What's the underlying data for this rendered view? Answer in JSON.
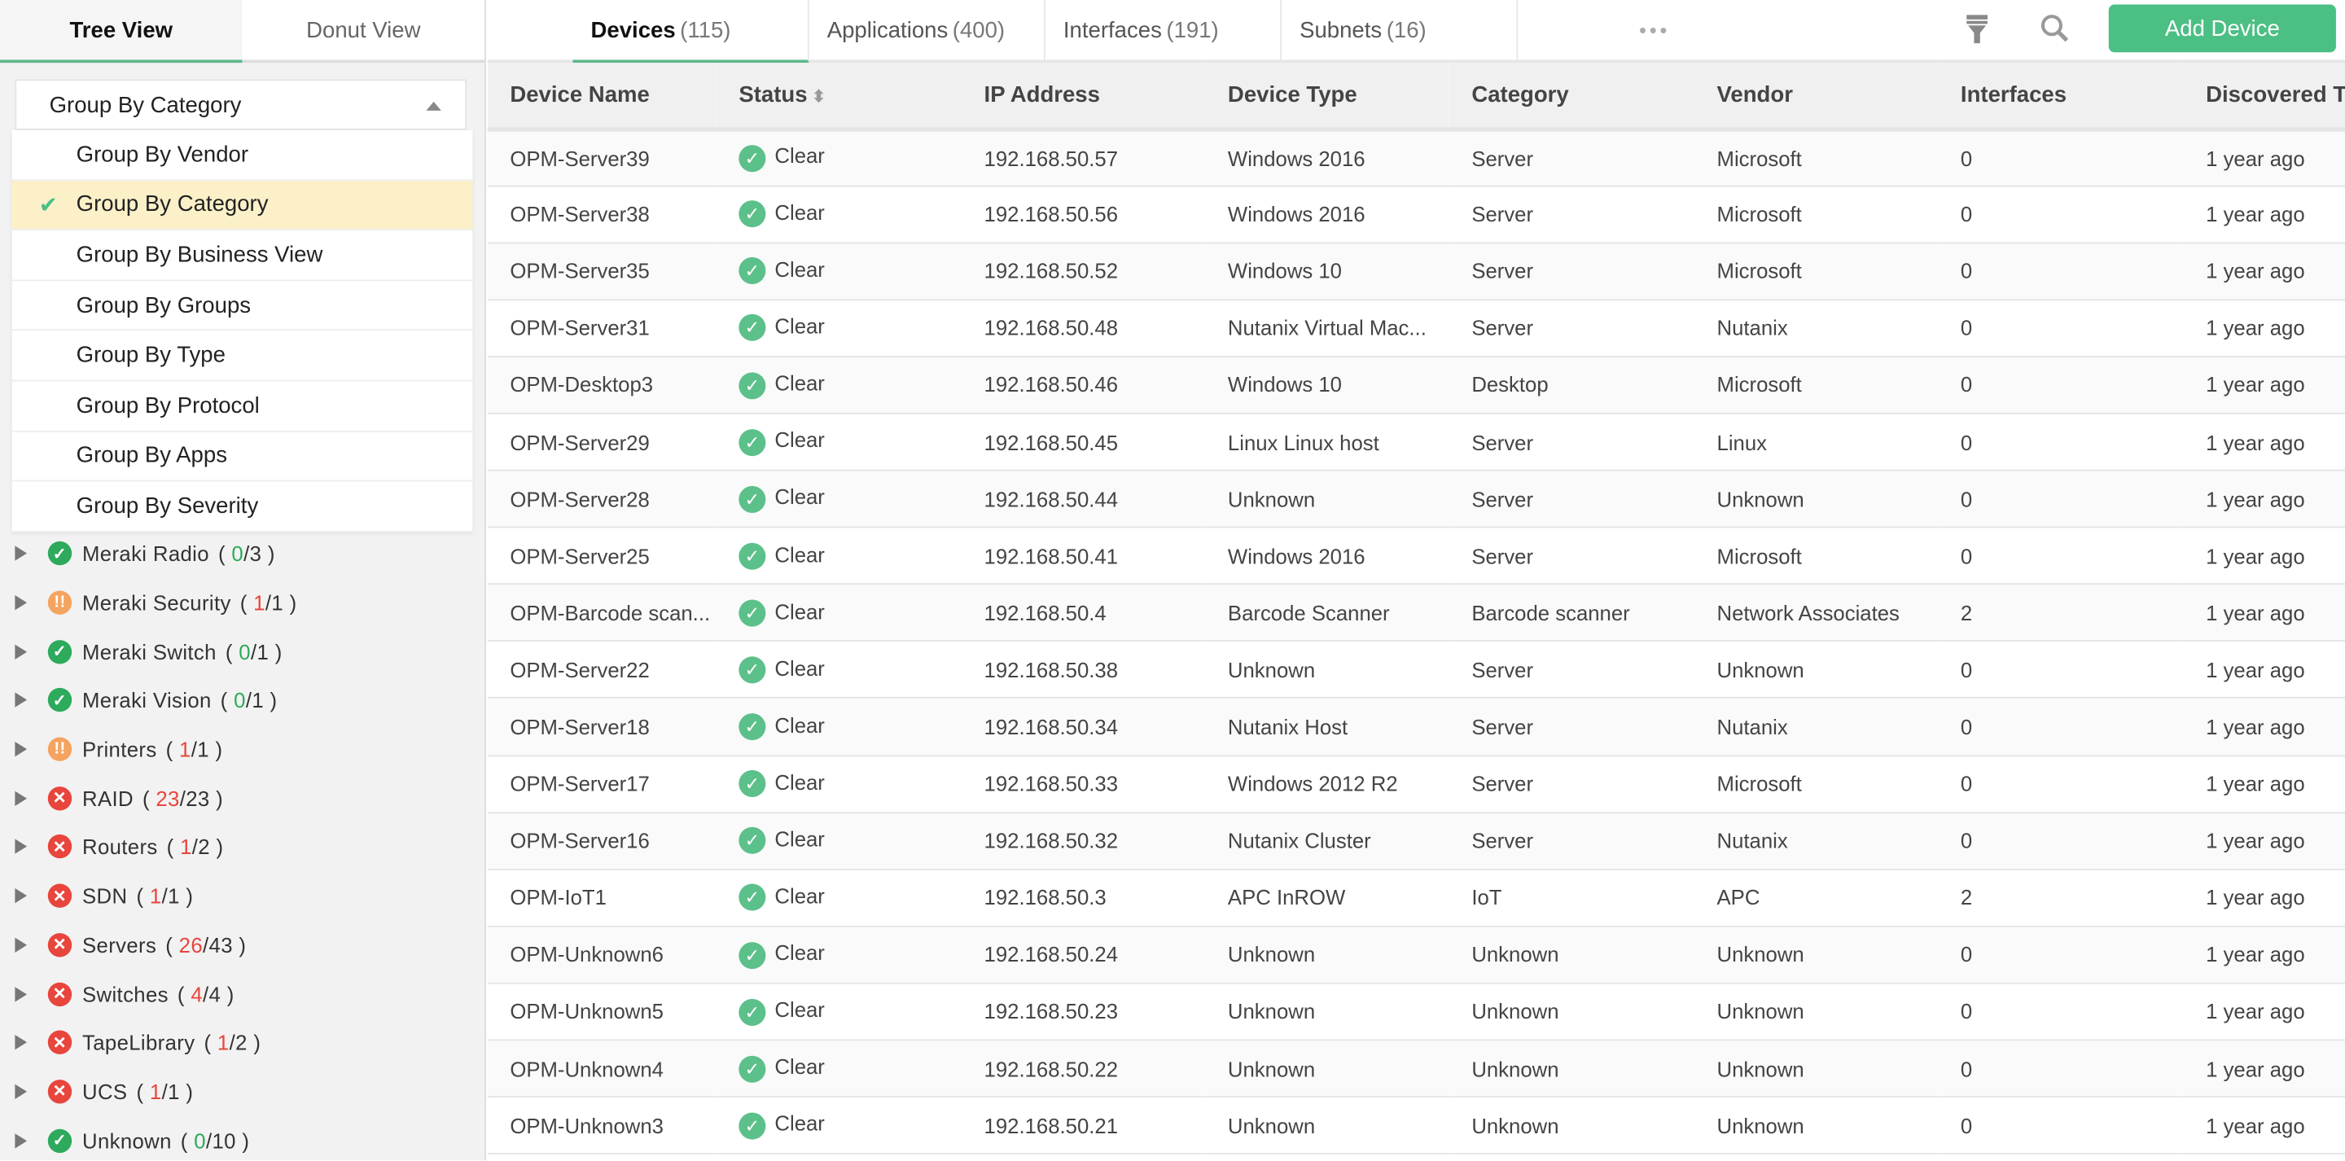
{
  "left_tabs": [
    "Tree View",
    "Donut View"
  ],
  "group_by": {
    "selected": "Group By Category",
    "options": [
      "Group By Vendor",
      "Group By Category",
      "Group By Business View",
      "Group By Groups",
      "Group By Type",
      "Group By Protocol",
      "Group By Apps",
      "Group By Severity"
    ]
  },
  "colors": {
    "clear": "#2eaa5c",
    "attention": "#f4a460",
    "critical": "#e8453c",
    "accent": "#4cbf84"
  },
  "tree": [
    {
      "name": "Meraki Radio",
      "status": "clear",
      "down": "0",
      "total": "3"
    },
    {
      "name": "Meraki Security",
      "status": "attention",
      "down": "1",
      "total": "1"
    },
    {
      "name": "Meraki Switch",
      "status": "clear",
      "down": "0",
      "total": "1"
    },
    {
      "name": "Meraki Vision",
      "status": "clear",
      "down": "0",
      "total": "1"
    },
    {
      "name": "Printers",
      "status": "attention",
      "down": "1",
      "total": "1"
    },
    {
      "name": "RAID",
      "status": "critical",
      "down": "23",
      "total": "23"
    },
    {
      "name": "Routers",
      "status": "critical",
      "down": "1",
      "total": "2"
    },
    {
      "name": "SDN",
      "status": "critical",
      "down": "1",
      "total": "1"
    },
    {
      "name": "Servers",
      "status": "critical",
      "down": "26",
      "total": "43"
    },
    {
      "name": "Switches",
      "status": "critical",
      "down": "4",
      "total": "4"
    },
    {
      "name": "TapeLibrary",
      "status": "critical",
      "down": "1",
      "total": "2"
    },
    {
      "name": "UCS",
      "status": "critical",
      "down": "1",
      "total": "1"
    },
    {
      "name": "Unknown",
      "status": "clear",
      "down": "0",
      "total": "10"
    }
  ],
  "tabs": [
    {
      "label": "Devices",
      "count": "(115)"
    },
    {
      "label": "Applications",
      "count": "(400)"
    },
    {
      "label": "Interfaces",
      "count": "(191)"
    },
    {
      "label": "Subnets",
      "count": "(16)"
    }
  ],
  "toolbar": {
    "more": "•••",
    "add_device": "Add Device",
    "icons": [
      "filter-icon",
      "search-icon"
    ]
  },
  "columns": [
    "Device Name",
    "Status",
    "IP Address",
    "Device Type",
    "Category",
    "Vendor",
    "Interfaces",
    "Discovered Ti"
  ],
  "rows": [
    [
      "OPM-Server39",
      "Clear",
      "192.168.50.57",
      "Windows 2016",
      "Server",
      "Microsoft",
      "0",
      "1 year ago"
    ],
    [
      "OPM-Server38",
      "Clear",
      "192.168.50.56",
      "Windows 2016",
      "Server",
      "Microsoft",
      "0",
      "1 year ago"
    ],
    [
      "OPM-Server35",
      "Clear",
      "192.168.50.52",
      "Windows 10",
      "Server",
      "Microsoft",
      "0",
      "1 year ago"
    ],
    [
      "OPM-Server31",
      "Clear",
      "192.168.50.48",
      "Nutanix Virtual Mac...",
      "Server",
      "Nutanix",
      "0",
      "1 year ago"
    ],
    [
      "OPM-Desktop3",
      "Clear",
      "192.168.50.46",
      "Windows 10",
      "Desktop",
      "Microsoft",
      "0",
      "1 year ago"
    ],
    [
      "OPM-Server29",
      "Clear",
      "192.168.50.45",
      "Linux Linux host",
      "Server",
      "Linux",
      "0",
      "1 year ago"
    ],
    [
      "OPM-Server28",
      "Clear",
      "192.168.50.44",
      "Unknown",
      "Server",
      "Unknown",
      "0",
      "1 year ago"
    ],
    [
      "OPM-Server25",
      "Clear",
      "192.168.50.41",
      "Windows 2016",
      "Server",
      "Microsoft",
      "0",
      "1 year ago"
    ],
    [
      "OPM-Barcode scan...",
      "Clear",
      "192.168.50.4",
      "Barcode Scanner",
      "Barcode scanner",
      "Network Associates",
      "2",
      "1 year ago"
    ],
    [
      "OPM-Server22",
      "Clear",
      "192.168.50.38",
      "Unknown",
      "Server",
      "Unknown",
      "0",
      "1 year ago"
    ],
    [
      "OPM-Server18",
      "Clear",
      "192.168.50.34",
      "Nutanix Host",
      "Server",
      "Nutanix",
      "0",
      "1 year ago"
    ],
    [
      "OPM-Server17",
      "Clear",
      "192.168.50.33",
      "Windows 2012 R2",
      "Server",
      "Microsoft",
      "0",
      "1 year ago"
    ],
    [
      "OPM-Server16",
      "Clear",
      "192.168.50.32",
      "Nutanix Cluster",
      "Server",
      "Nutanix",
      "0",
      "1 year ago"
    ],
    [
      "OPM-IoT1",
      "Clear",
      "192.168.50.3",
      "APC InROW",
      "IoT",
      "APC",
      "2",
      "1 year ago"
    ],
    [
      "OPM-Unknown6",
      "Clear",
      "192.168.50.24",
      "Unknown",
      "Unknown",
      "Unknown",
      "0",
      "1 year ago"
    ],
    [
      "OPM-Unknown5",
      "Clear",
      "192.168.50.23",
      "Unknown",
      "Unknown",
      "Unknown",
      "0",
      "1 year ago"
    ],
    [
      "OPM-Unknown4",
      "Clear",
      "192.168.50.22",
      "Unknown",
      "Unknown",
      "Unknown",
      "0",
      "1 year ago"
    ],
    [
      "OPM-Unknown3",
      "Clear",
      "192.168.50.21",
      "Unknown",
      "Unknown",
      "Unknown",
      "0",
      "1 year ago"
    ]
  ]
}
